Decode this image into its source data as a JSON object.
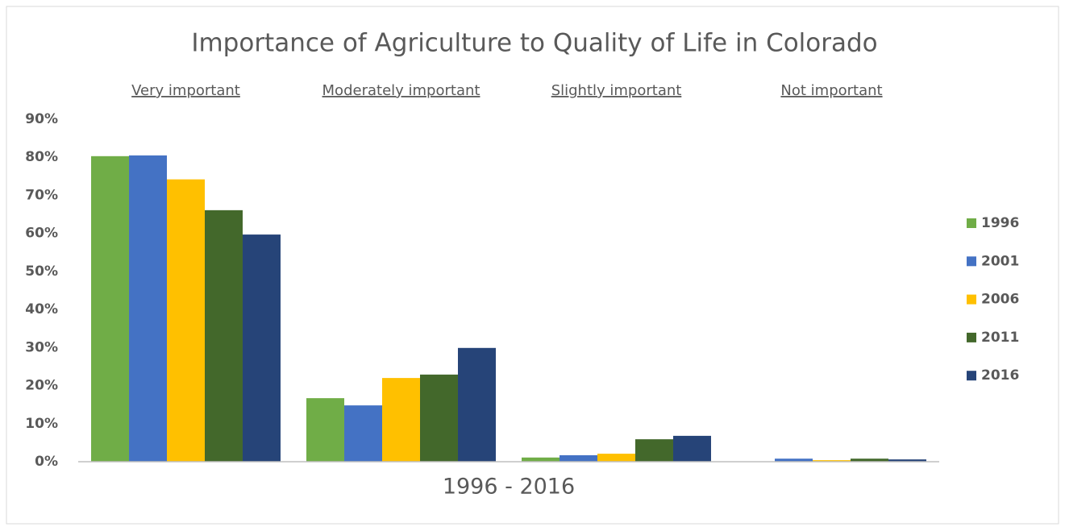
{
  "chart_data": {
    "type": "bar",
    "title": "Importance of Agriculture to Quality of Life in Colorado",
    "xlabel": "1996 - 2016",
    "categories": [
      "Very important",
      "Moderately important",
      "Slightly important",
      "Not important"
    ],
    "series": [
      {
        "name": "1996",
        "color": "#70ad47",
        "values": [
          80.3,
          16.7,
          1.1,
          0
        ]
      },
      {
        "name": "2001",
        "color": "#4472c4",
        "values": [
          80.5,
          14.8,
          1.7,
          0.8
        ]
      },
      {
        "name": "2006",
        "color": "#ffc000",
        "values": [
          74.2,
          22.0,
          2.1,
          0.4
        ]
      },
      {
        "name": "2011",
        "color": "#43682b",
        "values": [
          66.1,
          22.9,
          5.9,
          0.8
        ]
      },
      {
        "name": "2016",
        "color": "#264478",
        "values": [
          59.7,
          29.9,
          6.8,
          0.6
        ]
      }
    ],
    "ylim": [
      0,
      90
    ],
    "yticks": [
      {
        "value": 0,
        "label": "0%"
      },
      {
        "value": 10,
        "label": "10%"
      },
      {
        "value": 20,
        "label": "20%"
      },
      {
        "value": 30,
        "label": "30%"
      },
      {
        "value": 40,
        "label": "40%"
      },
      {
        "value": 50,
        "label": "50%"
      },
      {
        "value": 60,
        "label": "60%"
      },
      {
        "value": 70,
        "label": "70%"
      },
      {
        "value": 80,
        "label": "80%"
      },
      {
        "value": 90,
        "label": "90%"
      }
    ],
    "legend": "right"
  }
}
